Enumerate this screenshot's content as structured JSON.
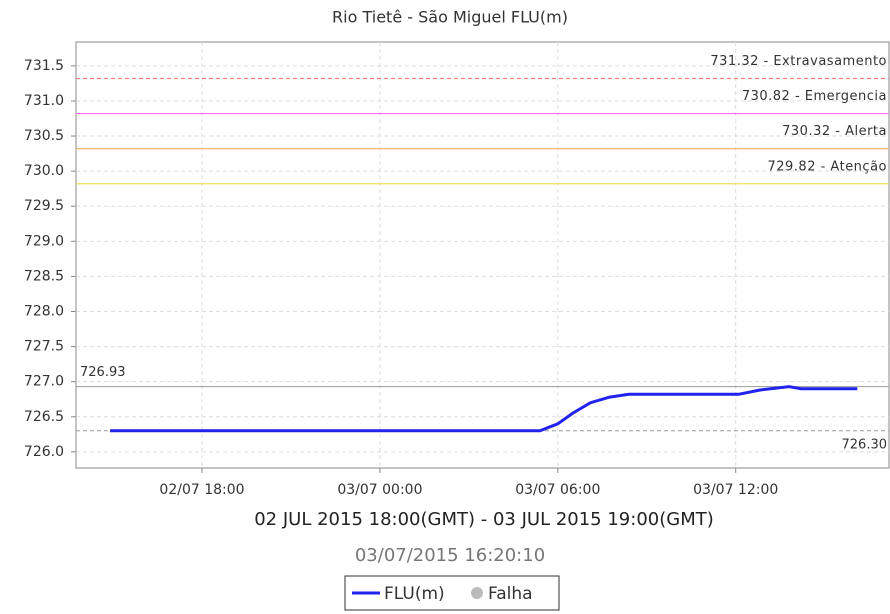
{
  "chart_data": {
    "type": "line",
    "title": "Rio Tietê - São Miguel FLU(m)",
    "subtitle": "02 JUL 2015 18:00(GMT) - 03 JUL 2015 19:00(GMT)",
    "timestamp": "03/07/2015 16:20:10",
    "x": [
      14.9,
      29.4,
      30.0,
      30.5,
      31.1,
      31.75,
      32.4,
      36.1,
      36.8,
      37.8,
      38.2,
      40.1
    ],
    "series": [
      {
        "name": "FLU(m)",
        "color": "#2222ee",
        "values": [
          726.3,
          726.3,
          726.4,
          726.55,
          726.7,
          726.78,
          726.82,
          726.82,
          726.88,
          726.93,
          726.9,
          726.9
        ]
      }
    ],
    "legend_extra": {
      "name": "Falha",
      "color": "#bbbbbb"
    },
    "xlim": [
      13.75,
      41.17
    ],
    "xticks": [
      {
        "value": 18,
        "label": "02/07 18:00"
      },
      {
        "value": 24,
        "label": "03/07 00:00"
      },
      {
        "value": 30,
        "label": "03/07 06:00"
      },
      {
        "value": 36,
        "label": "03/07 12:00"
      }
    ],
    "ylim": [
      725.77,
      731.84
    ],
    "yticks": [
      {
        "value": 726,
        "label": "726.0"
      },
      {
        "value": 726.5,
        "label": "726.5"
      },
      {
        "value": 727,
        "label": "727.0"
      },
      {
        "value": 727.5,
        "label": "727.5"
      },
      {
        "value": 728,
        "label": "728.0"
      },
      {
        "value": 728.5,
        "label": "728.5"
      },
      {
        "value": 729,
        "label": "729.0"
      },
      {
        "value": 729.5,
        "label": "729.5"
      },
      {
        "value": 730,
        "label": "730.0"
      },
      {
        "value": 730.5,
        "label": "730.5"
      },
      {
        "value": 731,
        "label": "731.0"
      },
      {
        "value": 731.5,
        "label": "731.5"
      }
    ],
    "grid": true,
    "thresholds": [
      {
        "value": 731.32,
        "label": "731.32 - Extravasamento",
        "color": "#f08080",
        "dashed": true
      },
      {
        "value": 730.82,
        "label": "730.82 - Emergencia",
        "color": "#ff66ff",
        "dashed": false
      },
      {
        "value": 730.32,
        "label": "730.32 - Alerta",
        "color": "#f4b060",
        "dashed": false
      },
      {
        "value": 729.82,
        "label": "729.82 - Atenção",
        "color": "#f0e060",
        "dashed": false
      }
    ],
    "max_line": {
      "value": 726.93,
      "label": "726.93",
      "color": "#999999"
    },
    "min_line": {
      "value": 726.3,
      "label": "726.30",
      "color": "#999999"
    }
  }
}
